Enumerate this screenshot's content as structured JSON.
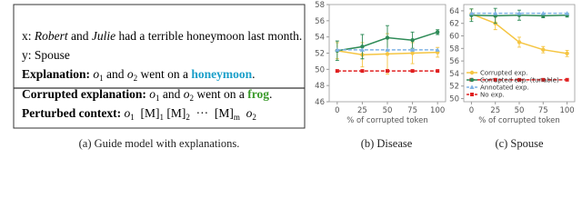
{
  "panel_a": {
    "lines": [
      [
        {
          "text": "x: "
        },
        {
          "text": "Robert",
          "style": "italic"
        },
        {
          "text": " and "
        },
        {
          "text": "Julie",
          "style": "italic"
        },
        {
          "text": " had a terrible honeymoon last month."
        }
      ],
      [
        {
          "text": "y: Spouse"
        }
      ],
      [
        {
          "text": "Explanation:",
          "style": "bold"
        },
        {
          "text": " "
        },
        {
          "text": "o",
          "sub": "1",
          "style": "italic"
        },
        {
          "text": " and "
        },
        {
          "text": "o",
          "sub": "2",
          "style": "italic"
        },
        {
          "text": " went on a "
        },
        {
          "text": "honeymoon",
          "style": "bold",
          "color": "#1a9fc9"
        },
        {
          "text": "."
        }
      ],
      [
        {
          "text": "Corrupted explanation:",
          "style": "bold"
        },
        {
          "text": " "
        },
        {
          "text": "o",
          "sub": "1",
          "style": "italic"
        },
        {
          "text": " and "
        },
        {
          "text": "o",
          "sub": "2",
          "style": "italic"
        },
        {
          "text": " went on a "
        },
        {
          "text": "frog",
          "style": "bold",
          "color": "#3a9a2a"
        },
        {
          "text": "."
        }
      ],
      [
        {
          "text": "Perturbed context:",
          "style": "bold"
        },
        {
          "text": " "
        },
        {
          "text": "o",
          "sub": "1",
          "style": "italic"
        },
        {
          "text": "  [M]",
          "sub": "1"
        },
        {
          "text": " [M]",
          "sub": "2"
        },
        {
          "text": "  ···  [M]",
          "sub": "m"
        },
        {
          "text": "  "
        },
        {
          "text": "o",
          "sub": "2",
          "style": "italic"
        }
      ]
    ],
    "caption": "(a) Guide model with explanations."
  },
  "chart_data": [
    {
      "type": "line",
      "caption": "(b) Disease",
      "xlabel": "% of corrupted token",
      "x": [
        0,
        25,
        50,
        75,
        100
      ],
      "xlim": [
        -8,
        108
      ],
      "xticks": [
        0,
        25,
        50,
        75,
        100
      ],
      "ylim": [
        46,
        58
      ],
      "yticks": [
        46,
        48,
        50,
        52,
        54,
        56,
        58
      ],
      "series": [
        {
          "color": "#f5c542",
          "marker": "circle",
          "values": [
            52.3,
            51.8,
            51.9,
            52.0,
            52.1
          ],
          "errors": [
            1.0,
            1.5,
            2.5,
            1.3,
            0.6
          ]
        },
        {
          "color": "#2e8b57",
          "marker": "circle",
          "values": [
            52.3,
            52.8,
            53.9,
            53.6,
            54.6
          ],
          "errors": [
            1.2,
            1.5,
            1.5,
            1.0,
            0.3
          ]
        },
        {
          "color": "#7fb2e5",
          "marker": "triangle",
          "dash": true,
          "values": [
            52.4,
            52.4,
            52.4,
            52.4,
            52.4
          ]
        },
        {
          "color": "#e02020",
          "marker": "square",
          "dash": true,
          "values": [
            49.8,
            49.8,
            49.8,
            49.8,
            49.8
          ]
        }
      ]
    },
    {
      "type": "line",
      "caption": "(c) Spouse",
      "xlabel": "% of corrupted token",
      "x": [
        0,
        25,
        50,
        75,
        100
      ],
      "xlim": [
        -8,
        108
      ],
      "xticks": [
        0,
        25,
        50,
        75,
        100
      ],
      "ylim": [
        49.5,
        65
      ],
      "yticks": [
        50,
        52,
        54,
        56,
        58,
        60,
        62,
        64
      ],
      "legend": "lower left",
      "series": [
        {
          "name": "Corrupted exp.",
          "color": "#f5c542",
          "marker": "circle",
          "values": [
            63.5,
            62.0,
            59.0,
            57.8,
            57.2
          ],
          "errors": [
            0.8,
            1.0,
            0.8,
            0.5,
            0.5
          ]
        },
        {
          "name": "Corrupted exp. (tunable)",
          "color": "#2e8b57",
          "marker": "circle",
          "values": [
            63.3,
            63.2,
            63.3,
            63.2,
            63.3
          ],
          "errors": [
            1.0,
            1.2,
            0.8,
            0.3,
            0.3
          ]
        },
        {
          "name": "Annotated exp.",
          "color": "#7fb2e5",
          "marker": "triangle",
          "dash": true,
          "values": [
            63.6,
            63.6,
            63.6,
            63.6,
            63.6
          ]
        },
        {
          "name": "No exp.",
          "color": "#e02020",
          "marker": "square",
          "dash": true,
          "values": [
            53.0,
            53.0,
            53.0,
            53.0,
            53.0
          ]
        }
      ]
    }
  ]
}
